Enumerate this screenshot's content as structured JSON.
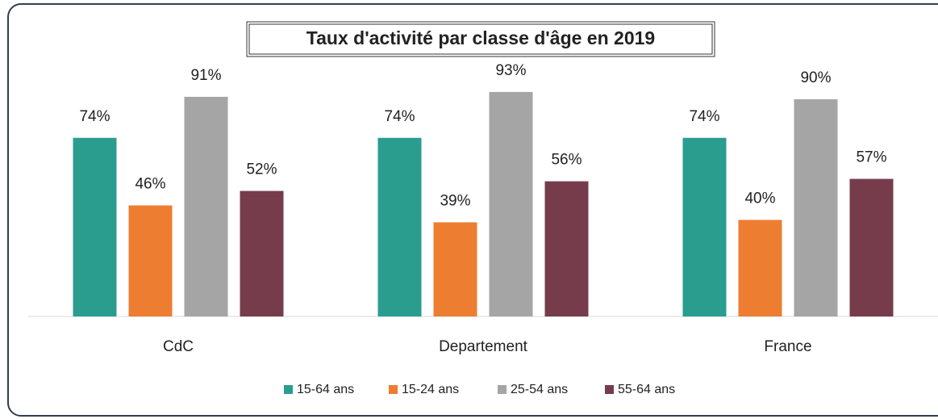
{
  "chart_data": {
    "type": "bar",
    "title": "Taux d'activité par classe d'âge en 2019",
    "categories": [
      "CdC",
      "Departement",
      "France"
    ],
    "series": [
      {
        "name": "15-64 ans",
        "color": "#2a9d8f",
        "values": [
          74,
          74,
          74
        ],
        "value_labels": [
          "74%",
          "74%",
          "74%"
        ]
      },
      {
        "name": "15-24 ans",
        "color": "#ed7d31",
        "values": [
          46,
          39,
          40
        ],
        "value_labels": [
          "46%",
          "39%",
          "40%"
        ]
      },
      {
        "name": "25-54 ans",
        "color": "#a5a5a5",
        "values": [
          91,
          93,
          90
        ],
        "value_labels": [
          "91%",
          "93%",
          "90%"
        ]
      },
      {
        "name": "55-64 ans",
        "color": "#763c4c",
        "values": [
          52,
          56,
          57
        ],
        "value_labels": [
          "52%",
          "56%",
          "57%"
        ]
      }
    ],
    "legend": "bottom"
  }
}
